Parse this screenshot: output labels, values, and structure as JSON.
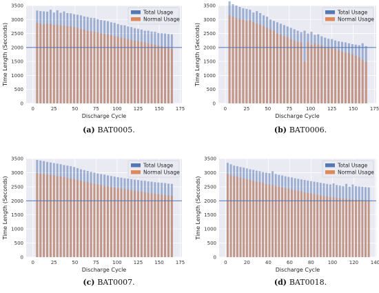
{
  "chart_data": [
    {
      "type": "bar",
      "panel": "a",
      "caption_label": "(a)",
      "caption_text": "BAT0005.",
      "xlabel": "Discharge Cycle",
      "ylabel": "Time Length (Seconds)",
      "xlim": [
        -8,
        177
      ],
      "ylim": [
        0,
        3500
      ],
      "xticks": [
        0,
        25,
        50,
        75,
        100,
        125,
        150,
        175
      ],
      "yticks": [
        0,
        500,
        1000,
        1500,
        2000,
        2500,
        3000,
        3500
      ],
      "grid": true,
      "legend_position": "top-right",
      "reference_line": 2000,
      "x": [
        5,
        9,
        13,
        17,
        21,
        25,
        29,
        33,
        37,
        41,
        45,
        49,
        53,
        57,
        61,
        65,
        69,
        73,
        77,
        81,
        85,
        89,
        93,
        97,
        101,
        105,
        109,
        113,
        117,
        121,
        125,
        129,
        133,
        137,
        141,
        145,
        149,
        153,
        157,
        161,
        165
      ],
      "series": [
        {
          "name": "Total Usage",
          "color": "#4c72b0",
          "alpha": 0.5,
          "values": [
            3320,
            3300,
            3290,
            3280,
            3350,
            3250,
            3330,
            3240,
            3290,
            3230,
            3220,
            3190,
            3170,
            3150,
            3110,
            3090,
            3060,
            3050,
            3010,
            2980,
            2960,
            2940,
            2900,
            2880,
            2840,
            2800,
            2790,
            2750,
            2730,
            2690,
            2670,
            2640,
            2600,
            2600,
            2570,
            2560,
            2520,
            2510,
            2500,
            2480,
            2470
          ]
        },
        {
          "name": "Normal Usage",
          "color": "#dd8452",
          "alpha": 0.6,
          "values": [
            2870,
            2860,
            2830,
            2850,
            2840,
            2800,
            2810,
            2790,
            2780,
            2760,
            2750,
            2730,
            2700,
            2660,
            2640,
            2600,
            2580,
            2560,
            2540,
            2510,
            2480,
            2460,
            2440,
            2400,
            2390,
            2350,
            2330,
            2300,
            2270,
            2250,
            2230,
            2200,
            2180,
            2150,
            2120,
            2100,
            2060,
            2040,
            2000,
            1980,
            1950
          ]
        }
      ]
    },
    {
      "type": "bar",
      "panel": "b",
      "caption_label": "(b)",
      "caption_text": "BAT0006.",
      "xlabel": "Discharge Cycle",
      "ylabel": "Time Length (Seconds)",
      "xlim": [
        -8,
        177
      ],
      "ylim": [
        0,
        3500
      ],
      "xticks": [
        0,
        25,
        50,
        75,
        100,
        125,
        150,
        175
      ],
      "yticks": [
        0,
        500,
        1000,
        1500,
        2000,
        2500,
        3000,
        3500
      ],
      "grid": true,
      "legend_position": "top-right",
      "reference_line": 2000,
      "x": [
        5,
        9,
        13,
        17,
        21,
        25,
        29,
        33,
        37,
        41,
        45,
        49,
        53,
        57,
        61,
        65,
        69,
        73,
        77,
        81,
        85,
        89,
        93,
        97,
        101,
        105,
        109,
        113,
        117,
        121,
        125,
        129,
        133,
        137,
        141,
        145,
        149,
        153,
        157,
        161,
        165
      ],
      "series": [
        {
          "name": "Total Usage",
          "color": "#4c72b0",
          "alpha": 0.5,
          "values": [
            3650,
            3550,
            3500,
            3450,
            3400,
            3380,
            3350,
            3250,
            3300,
            3230,
            3150,
            3100,
            3000,
            2950,
            2900,
            2850,
            2800,
            2750,
            2700,
            2650,
            2600,
            2550,
            2600,
            2500,
            2560,
            2450,
            2470,
            2400,
            2350,
            2310,
            2300,
            2250,
            2220,
            2200,
            2180,
            2150,
            2120,
            2100,
            2080,
            2150,
            2050
          ]
        },
        {
          "name": "Normal Usage",
          "color": "#dd8452",
          "alpha": 0.6,
          "values": [
            3150,
            3100,
            3050,
            3020,
            3000,
            2950,
            2980,
            2900,
            2850,
            2820,
            2760,
            2700,
            2650,
            2600,
            2500,
            2450,
            2400,
            2380,
            2300,
            2250,
            2200,
            2180,
            1500,
            2200,
            2100,
            2150,
            2100,
            2080,
            2000,
            2000,
            1980,
            1950,
            1900,
            1850,
            1820,
            1800,
            1750,
            1700,
            1650,
            1550,
            1500
          ]
        }
      ]
    },
    {
      "type": "bar",
      "panel": "c",
      "caption_label": "(c)",
      "caption_text": "BAT0007.",
      "xlabel": "Discharge Cycle",
      "ylabel": "Time Length (Seconds)",
      "xlim": [
        -8,
        177
      ],
      "ylim": [
        0,
        3500
      ],
      "xticks": [
        0,
        25,
        50,
        75,
        100,
        125,
        150,
        175
      ],
      "yticks": [
        0,
        500,
        1000,
        1500,
        2000,
        2500,
        3000,
        3500
      ],
      "grid": true,
      "legend_position": "top-right",
      "reference_line": 2000,
      "x": [
        5,
        9,
        13,
        17,
        21,
        25,
        29,
        33,
        37,
        41,
        45,
        49,
        53,
        57,
        61,
        65,
        69,
        73,
        77,
        81,
        85,
        89,
        93,
        97,
        101,
        105,
        109,
        113,
        117,
        121,
        125,
        129,
        133,
        137,
        141,
        145,
        149,
        153,
        157,
        161,
        165
      ],
      "series": [
        {
          "name": "Total Usage",
          "color": "#4c72b0",
          "alpha": 0.5,
          "values": [
            3450,
            3430,
            3410,
            3380,
            3360,
            3340,
            3320,
            3300,
            3270,
            3250,
            3230,
            3200,
            3160,
            3120,
            3090,
            3060,
            3030,
            3000,
            2970,
            2950,
            2930,
            2900,
            2880,
            2860,
            2840,
            2820,
            2800,
            2790,
            2770,
            2750,
            2740,
            2720,
            2710,
            2690,
            2680,
            2660,
            2650,
            2640,
            2630,
            2610,
            2600
          ]
        },
        {
          "name": "Normal Usage",
          "color": "#dd8452",
          "alpha": 0.6,
          "values": [
            2980,
            2960,
            2950,
            2930,
            2920,
            2900,
            2880,
            2860,
            2840,
            2810,
            2790,
            2770,
            2740,
            2710,
            2680,
            2660,
            2630,
            2600,
            2580,
            2560,
            2530,
            2510,
            2490,
            2470,
            2450,
            2430,
            2410,
            2400,
            2380,
            2360,
            2340,
            2320,
            2300,
            2290,
            2270,
            2250,
            2230,
            2220,
            2200,
            2190,
            2180
          ]
        }
      ]
    },
    {
      "type": "bar",
      "panel": "d",
      "caption_label": "(d)",
      "caption_text": "BAT0018.",
      "xlabel": "Discharge Cycle",
      "ylabel": "Time Length (Seconds)",
      "xlim": [
        -6,
        141
      ],
      "ylim": [
        0,
        3500
      ],
      "xticks": [
        0,
        20,
        40,
        60,
        80,
        100,
        120,
        140
      ],
      "yticks": [
        0,
        500,
        1000,
        1500,
        2000,
        2500,
        3000,
        3500
      ],
      "grid": true,
      "legend_position": "top-right",
      "reference_line": 2000,
      "x": [
        2,
        5,
        8,
        11,
        14,
        17,
        20,
        23,
        26,
        29,
        32,
        35,
        38,
        41,
        44,
        47,
        50,
        53,
        56,
        59,
        62,
        65,
        68,
        71,
        74,
        77,
        80,
        83,
        86,
        89,
        92,
        95,
        98,
        101,
        104,
        107,
        110,
        113,
        116,
        119,
        122,
        125,
        128,
        131,
        134
      ],
      "series": [
        {
          "name": "Total Usage",
          "color": "#4c72b0",
          "alpha": 0.5,
          "values": [
            3350,
            3300,
            3250,
            3230,
            3200,
            3180,
            3150,
            3120,
            3100,
            3070,
            3050,
            3020,
            3000,
            2980,
            3050,
            2950,
            2920,
            2900,
            2870,
            2850,
            2830,
            2800,
            2780,
            2760,
            2740,
            2720,
            2700,
            2680,
            2660,
            2640,
            2620,
            2600,
            2580,
            2620,
            2560,
            2540,
            2520,
            2600,
            2500,
            2580,
            2520,
            2510,
            2500,
            2490,
            2480
          ]
        },
        {
          "name": "Normal Usage",
          "color": "#dd8452",
          "alpha": 0.6,
          "values": [
            2950,
            2900,
            2880,
            2850,
            2820,
            2790,
            2760,
            2740,
            2710,
            2680,
            2660,
            2630,
            2600,
            2580,
            2550,
            2530,
            2500,
            2480,
            2450,
            2430,
            2400,
            2380,
            2360,
            2340,
            2300,
            2280,
            2260,
            2240,
            2210,
            2190,
            2170,
            2150,
            2130,
            2120,
            2100,
            2090,
            2080,
            2070,
            2060,
            2050,
            2040,
            2040,
            2030,
            2020,
            2010
          ]
        }
      ]
    }
  ]
}
